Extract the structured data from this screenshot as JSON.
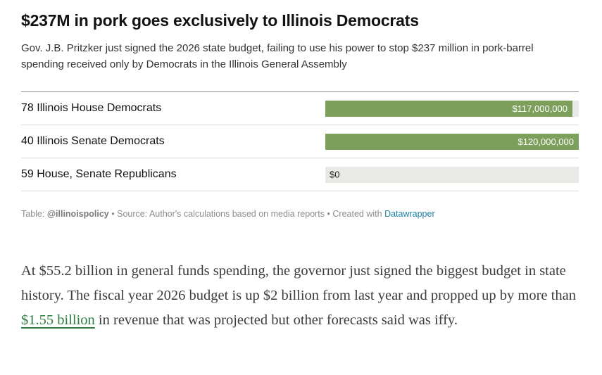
{
  "chart": {
    "title": "$237M in pork goes exclusively to Illinois Democrats",
    "subtitle": "Gov. J.B. Pritzker just signed the 2026 state budget, failing to use his power to stop $237 million in pork-barrel spending received only by Democrats in the Illinois General Assembly",
    "footer": {
      "table_label": "Table:",
      "table_handle": "@illinoispolicy",
      "separator": "•",
      "source_text": "Source: Author's calculations based on media reports",
      "created_with": "Created with",
      "tool_link": "Datawrapper"
    }
  },
  "chart_data": {
    "type": "bar",
    "orientation": "horizontal",
    "categories": [
      "78 Illinois House Democrats",
      "40 Illinois Senate Democrats",
      "59 House, Senate Republicans"
    ],
    "values": [
      117000000,
      120000000,
      0
    ],
    "value_labels": [
      "$117,000,000",
      "$120,000,000",
      "$0"
    ],
    "xlim": [
      0,
      120000000
    ],
    "bar_color": "#7d9f5c",
    "track_color": "#e9e9e6",
    "legend_position": "none",
    "grid": false
  },
  "colors": {
    "footer_link": "#1d81a5",
    "article_link": "#2e7d3e"
  },
  "article": {
    "text_before": "At $55.2 billion in general funds spending, the governor just signed the biggest budget in state history. The fiscal year 2026 budget is up $2 billion from last year and propped up by more than ",
    "link_text": "$1.55 billion",
    "text_after": " in revenue that was projected but other forecasts said was iffy."
  }
}
